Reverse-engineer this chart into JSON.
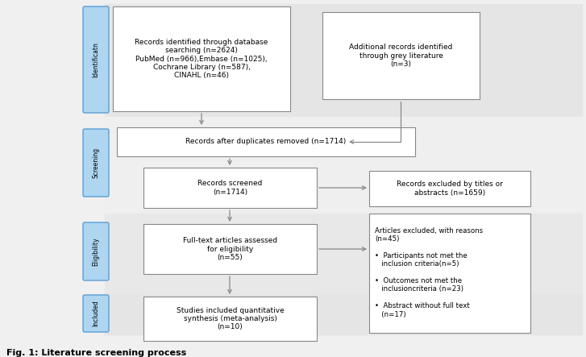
{
  "background_color": "#f0f0f0",
  "box_bg": "#ffffff",
  "box_border": "#888888",
  "arrow_color": "#888888",
  "label_bg": "#aed6f1",
  "label_border": "#5a9fd4",
  "fig_caption": "Fig. 1: Literature screening process",
  "band_colors": [
    "#e8e8e8",
    "#f0f0f0",
    "#ebebeb",
    "#e8e8e8"
  ],
  "id_box1_text": "Records identified through database\nsearching (n=2624)\nPubMed (n=966),Embase (n=1025),\nCochrane Library (n=587),\nCINAHL (n=46)",
  "id_box2_text": "Additional records identified\nthrough grey literature\n(n=3)",
  "dup_box_text": "Records after duplicates removed (n=1714)",
  "screened_box_text": "Records screened\n(n=1714)",
  "excl_titles_text": "Records excluded by titles or\nabstracts (n=1659)",
  "fulltext_box_text": "Full-text articles assessed\nfor eligibility\n(n=55)",
  "excl_reasons_text": "Articles excluded, with reasons\n(n=45)\n\n•  Participants not met the\n   inclusion criteria(n=5)\n\n•  Outcomes not met the\n   inclusioncriteria (n=23)\n\n•  Abstract without full text\n   (n=17)",
  "included_box_text": "Studies included quantitative\nsynthesis (meta-analysis)\n(n=10)",
  "label_texts": [
    "Identificatn",
    "Screening",
    "Eligibility",
    "Included"
  ]
}
